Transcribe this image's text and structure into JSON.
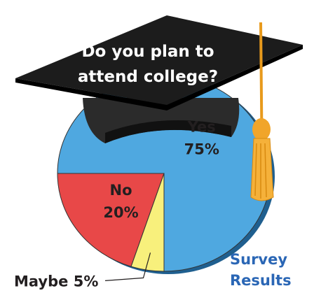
{
  "chart_data": {
    "type": "pie",
    "title": "Do you plan to attend college?",
    "caption": "Survey Results",
    "categories": [
      "Yes",
      "No",
      "Maybe"
    ],
    "values": [
      75,
      20,
      5
    ],
    "value_labels": [
      "75%",
      "20%",
      "5%"
    ],
    "colors": [
      "#4fa8e0",
      "#e84848",
      "#f8f07c"
    ]
  }
}
